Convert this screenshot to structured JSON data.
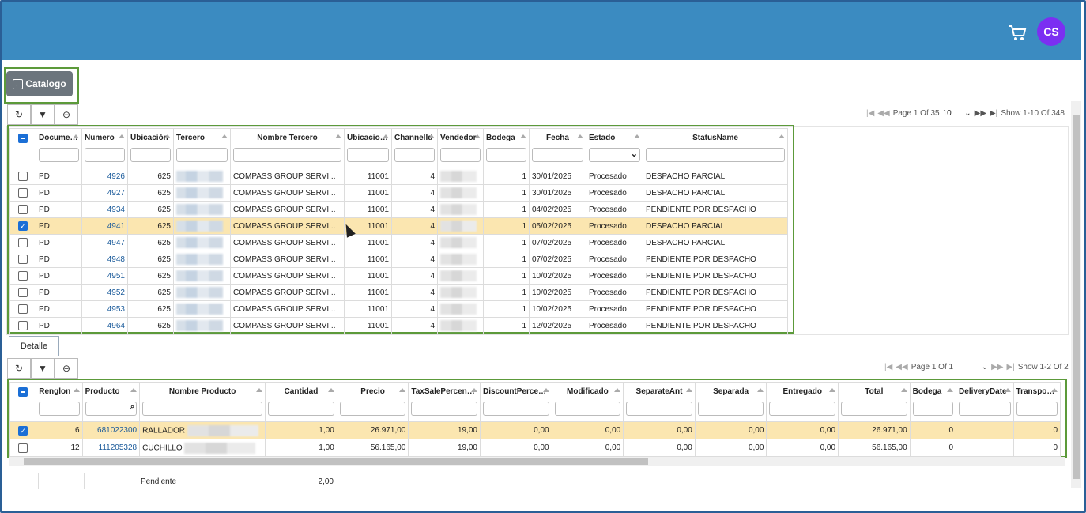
{
  "header": {
    "avatar_initials": "CS",
    "cart_icon": "cart-icon"
  },
  "catalog_button": {
    "label": "Catalogo"
  },
  "top_grid": {
    "pager": {
      "page_text": "Page 1 Of 35",
      "page_size": "10",
      "show_text": "Show 1-10 Of 348"
    },
    "columns": [
      "Documento",
      "Numero",
      "Ubicación",
      "Tercero",
      "Nombre Tercero",
      "UbicacionGe",
      "ChannelId",
      "Vendedor",
      "Bodega",
      "Fecha",
      "Estado",
      "StatusName"
    ],
    "rows": [
      {
        "documento": "PD",
        "numero": "4926",
        "ubicacion": "625",
        "nombre": "COMPASS GROUP SERVI...",
        "ubicge": "11001",
        "channel": "4",
        "bodega": "1",
        "fecha": "30/01/2025",
        "estado": "Procesado",
        "status": "DESPACHO PARCIAL",
        "checked": false
      },
      {
        "documento": "PD",
        "numero": "4927",
        "ubicacion": "625",
        "nombre": "COMPASS GROUP SERVI...",
        "ubicge": "11001",
        "channel": "4",
        "bodega": "1",
        "fecha": "30/01/2025",
        "estado": "Procesado",
        "status": "DESPACHO PARCIAL",
        "checked": false
      },
      {
        "documento": "PD",
        "numero": "4934",
        "ubicacion": "625",
        "nombre": "COMPASS GROUP SERVI...",
        "ubicge": "11001",
        "channel": "4",
        "bodega": "1",
        "fecha": "04/02/2025",
        "estado": "Procesado",
        "status": "PENDIENTE POR DESPACHO",
        "checked": false
      },
      {
        "documento": "PD",
        "numero": "4941",
        "ubicacion": "625",
        "nombre": "COMPASS GROUP SERVI...",
        "ubicge": "11001",
        "channel": "4",
        "bodega": "1",
        "fecha": "05/02/2025",
        "estado": "Procesado",
        "status": "DESPACHO PARCIAL",
        "checked": true
      },
      {
        "documento": "PD",
        "numero": "4947",
        "ubicacion": "625",
        "nombre": "COMPASS GROUP SERVI...",
        "ubicge": "11001",
        "channel": "4",
        "bodega": "1",
        "fecha": "07/02/2025",
        "estado": "Procesado",
        "status": "DESPACHO PARCIAL",
        "checked": false
      },
      {
        "documento": "PD",
        "numero": "4948",
        "ubicacion": "625",
        "nombre": "COMPASS GROUP SERVI...",
        "ubicge": "11001",
        "channel": "4",
        "bodega": "1",
        "fecha": "07/02/2025",
        "estado": "Procesado",
        "status": "PENDIENTE POR DESPACHO",
        "checked": false
      },
      {
        "documento": "PD",
        "numero": "4951",
        "ubicacion": "625",
        "nombre": "COMPASS GROUP SERVI...",
        "ubicge": "11001",
        "channel": "4",
        "bodega": "1",
        "fecha": "10/02/2025",
        "estado": "Procesado",
        "status": "PENDIENTE POR DESPACHO",
        "checked": false
      },
      {
        "documento": "PD",
        "numero": "4952",
        "ubicacion": "625",
        "nombre": "COMPASS GROUP SERVI...",
        "ubicge": "11001",
        "channel": "4",
        "bodega": "1",
        "fecha": "10/02/2025",
        "estado": "Procesado",
        "status": "PENDIENTE POR DESPACHO",
        "checked": false
      },
      {
        "documento": "PD",
        "numero": "4953",
        "ubicacion": "625",
        "nombre": "COMPASS GROUP SERVI...",
        "ubicge": "11001",
        "channel": "4",
        "bodega": "1",
        "fecha": "10/02/2025",
        "estado": "Procesado",
        "status": "PENDIENTE POR DESPACHO",
        "checked": false
      },
      {
        "documento": "PD",
        "numero": "4964",
        "ubicacion": "625",
        "nombre": "COMPASS GROUP SERVI...",
        "ubicge": "11001",
        "channel": "4",
        "bodega": "1",
        "fecha": "12/02/2025",
        "estado": "Procesado",
        "status": "PENDIENTE POR DESPACHO",
        "checked": false
      }
    ]
  },
  "detail_tab": {
    "label": "Detalle"
  },
  "bottom_grid": {
    "pager": {
      "page_text": "Page 1 Of 1",
      "show_text": "Show 1-2 Of 2"
    },
    "columns": [
      "Renglon",
      "Producto",
      "Nombre Producto",
      "Cantidad",
      "Precio",
      "TaxSalePercentage",
      "DiscountPercentage",
      "Modificado",
      "SeparateAnt",
      "Separada",
      "Entregado",
      "Total",
      "Bodega",
      "DeliveryDate",
      "TransporterI"
    ],
    "rows": [
      {
        "renglon": "6",
        "producto": "681022300",
        "nombre": "RALLADOR",
        "cantidad": "1,00",
        "precio": "26.971,00",
        "tax": "19,00",
        "discount": "0,00",
        "modificado": "0,00",
        "separateant": "0,00",
        "separada": "0,00",
        "entregado": "0,00",
        "total": "26.971,00",
        "bodega": "0",
        "delivery": "",
        "transporter": "0",
        "checked": true
      },
      {
        "renglon": "12",
        "producto": "111205328",
        "nombre": "CUCHILLO",
        "cantidad": "1,00",
        "precio": "56.165,00",
        "tax": "19,00",
        "discount": "0,00",
        "modificado": "0,00",
        "separateant": "0,00",
        "separada": "0,00",
        "entregado": "0,00",
        "total": "56.165,00",
        "bodega": "0",
        "delivery": "",
        "transporter": "0",
        "checked": false
      }
    ],
    "footer": {
      "label": "Pendiente",
      "cantidad_total": "2,00"
    }
  }
}
